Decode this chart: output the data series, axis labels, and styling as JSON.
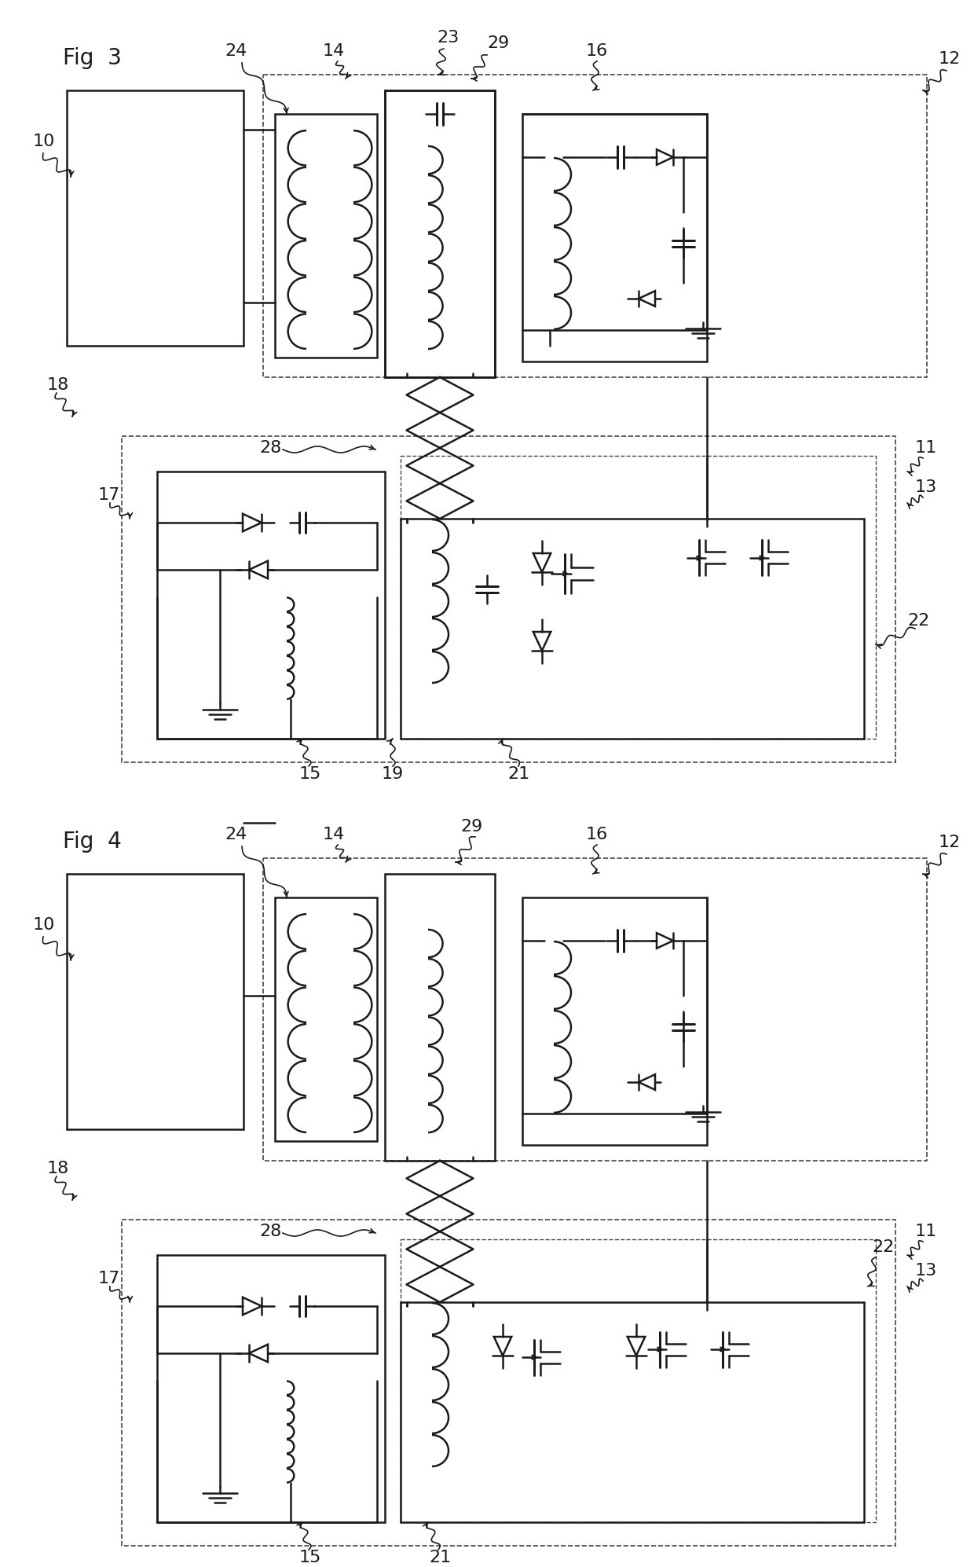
{
  "bg_color": "#ffffff",
  "lc": "#1a1a1a",
  "dc": "#444444",
  "lw": 1.8,
  "lw_thin": 1.2,
  "fs_label": 16,
  "fs_title": 20,
  "fig3_title": "Fig  3",
  "fig4_title": "Fig  4"
}
